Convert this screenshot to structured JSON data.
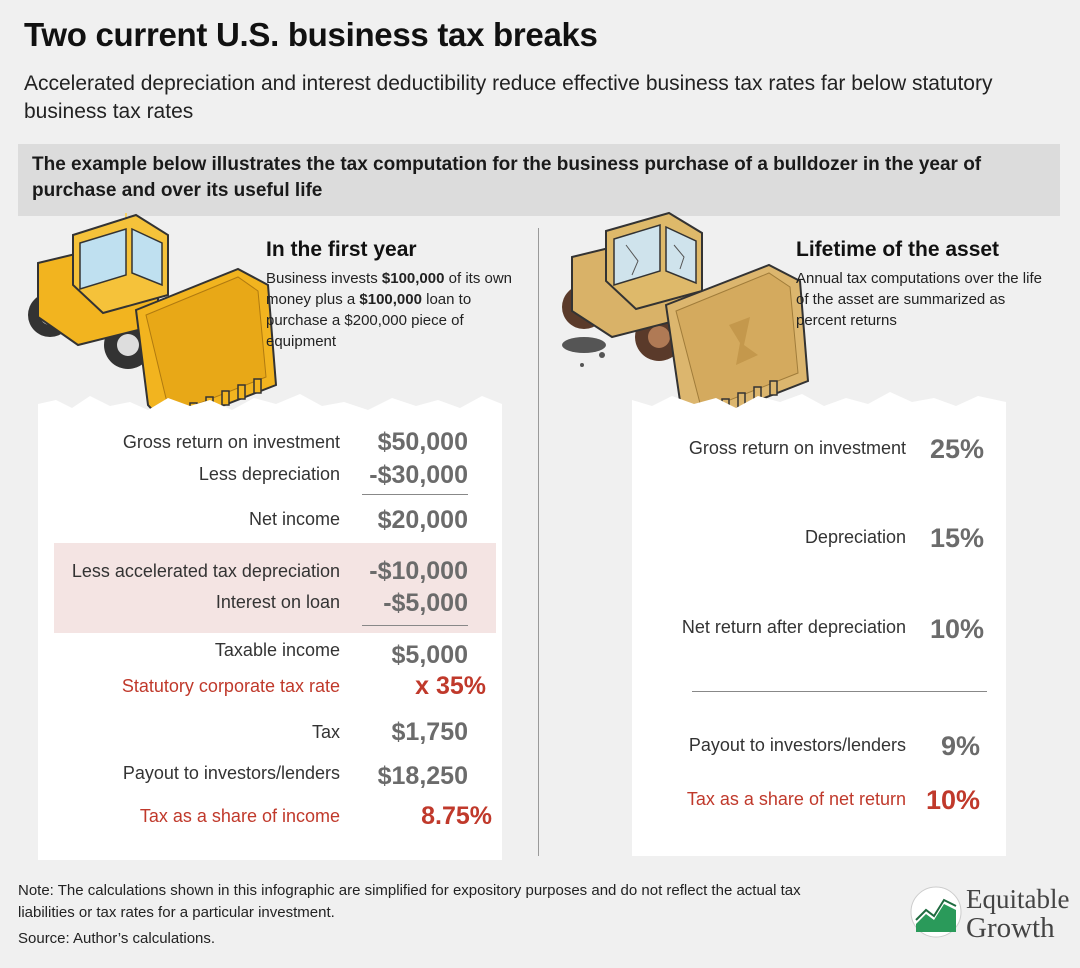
{
  "header": {
    "title": "Two current U.S. business tax breaks",
    "subtitle": "Accelerated depreciation and interest deductibility reduce effective business tax rates far below statutory business tax rates",
    "banner": "The example below illustrates the tax computation for the business purchase of a bulldozer in the year of purchase and over its useful life"
  },
  "first_year": {
    "title": "In the first year",
    "desc": [
      "Business invests ",
      "$100,000",
      " of its own money plus a ",
      "$100,000",
      " loan to purchase a $200,000 piece of equipment"
    ],
    "rows": {
      "gross_label": "Gross return on investment",
      "gross_value": "$50,000",
      "dep_label": "Less depreciation",
      "dep_value": "-$30,000",
      "net_label": "Net income",
      "net_value": "$20,000",
      "accel_label": "Less accelerated tax depreciation",
      "accel_value": "-$10,000",
      "interest_label": "Interest on loan",
      "interest_value": "-$5,000",
      "taxable_label": "Taxable income",
      "taxable_value": "$5,000",
      "rate_label": "Statutory corporate tax rate",
      "rate_value": "x 35%",
      "tax_label": "Tax",
      "tax_value": "$1,750",
      "payout_label": "Payout to investors/lenders",
      "payout_value": "$18,250",
      "share_label": "Tax as a share of income",
      "share_value": "8.75%"
    }
  },
  "lifetime": {
    "title": "Lifetime of the asset",
    "desc": "Annual tax computations over the life of the asset are summarized as percent returns",
    "rows": {
      "gross_label": "Gross return on investment",
      "gross_value": "25%",
      "dep_label": "Depreciation",
      "dep_value": "15%",
      "net_label": "Net return after depreciation",
      "net_value": "10%",
      "payout_label": "Payout to investors/lenders",
      "payout_value": "9%",
      "share_label": "Tax as a share of net return",
      "share_value": "10%"
    }
  },
  "footer": {
    "note": "Note: The calculations shown in this infographic are simplified for expository purposes and do not reflect the actual tax liabilities or tax rates for a particular investment.",
    "source": "Source: Author’s calculations."
  },
  "logo": {
    "line1": "Equitable",
    "line2": "Growth"
  },
  "colors": {
    "accent_red": "#c0392b",
    "value_gray": "#6b6b6b",
    "bulldozer_yellow": "#f2b41f",
    "logo_green": "#2a9a5a"
  },
  "icons": [
    "bulldozer-new-icon",
    "bulldozer-worn-icon",
    "equitable-growth-logo-icon"
  ]
}
